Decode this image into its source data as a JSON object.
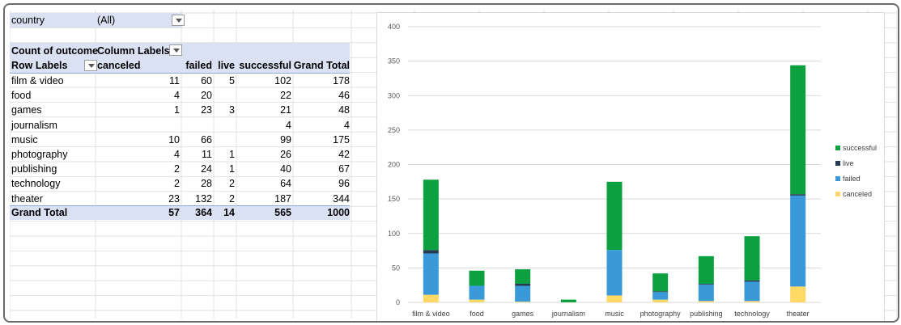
{
  "pivot": {
    "filter": {
      "label": "country",
      "value": "(All)"
    },
    "corner_label": "Count of outcome",
    "column_labels": "Column Labels",
    "row_labels": "Row Labels",
    "headers": [
      "canceled",
      "failed",
      "live",
      "successful",
      "Grand Total"
    ],
    "rows": [
      {
        "name": "film & video",
        "canceled": "11",
        "failed": "60",
        "live": "5",
        "successful": "102",
        "total": "178"
      },
      {
        "name": "food",
        "canceled": "4",
        "failed": "20",
        "live": "",
        "successful": "22",
        "total": "46"
      },
      {
        "name": "games",
        "canceled": "1",
        "failed": "23",
        "live": "3",
        "successful": "21",
        "total": "48"
      },
      {
        "name": "journalism",
        "canceled": "",
        "failed": "",
        "live": "",
        "successful": "4",
        "total": "4"
      },
      {
        "name": "music",
        "canceled": "10",
        "failed": "66",
        "live": "",
        "successful": "99",
        "total": "175"
      },
      {
        "name": "photography",
        "canceled": "4",
        "failed": "11",
        "live": "1",
        "successful": "26",
        "total": "42"
      },
      {
        "name": "publishing",
        "canceled": "2",
        "failed": "24",
        "live": "1",
        "successful": "40",
        "total": "67"
      },
      {
        "name": "technology",
        "canceled": "2",
        "failed": "28",
        "live": "2",
        "successful": "64",
        "total": "96"
      },
      {
        "name": "theater",
        "canceled": "23",
        "failed": "132",
        "live": "2",
        "successful": "187",
        "total": "344"
      }
    ],
    "grand_total": {
      "name": "Grand Total",
      "canceled": "57",
      "failed": "364",
      "live": "14",
      "successful": "565",
      "total": "1000"
    }
  },
  "colors": {
    "header_fill": "#d9e1f2",
    "header_rule": "#8ea9db",
    "grid": "#e1e1e1",
    "canceled": "#ffd966",
    "failed": "#3a9ad9",
    "live": "#243b53",
    "successful": "#0ca041"
  },
  "chart_data": {
    "type": "bar",
    "stacked": true,
    "categories": [
      "film & video",
      "food",
      "games",
      "journalism",
      "music",
      "photography",
      "publishing",
      "technology",
      "theater"
    ],
    "series": [
      {
        "name": "canceled",
        "values": [
          11,
          4,
          1,
          0,
          10,
          4,
          2,
          2,
          23
        ]
      },
      {
        "name": "failed",
        "values": [
          60,
          20,
          23,
          0,
          66,
          11,
          24,
          28,
          132
        ]
      },
      {
        "name": "live",
        "values": [
          5,
          0,
          3,
          0,
          0,
          1,
          1,
          2,
          2
        ]
      },
      {
        "name": "successful",
        "values": [
          102,
          22,
          21,
          4,
          99,
          26,
          40,
          64,
          187
        ]
      }
    ],
    "legend_order": [
      "successful",
      "live",
      "failed",
      "canceled"
    ],
    "legend_position": "right",
    "ylim": [
      0,
      400
    ],
    "yticks": [
      "0",
      "50",
      "100",
      "150",
      "200",
      "250",
      "300",
      "350",
      "400"
    ],
    "grid": true
  }
}
